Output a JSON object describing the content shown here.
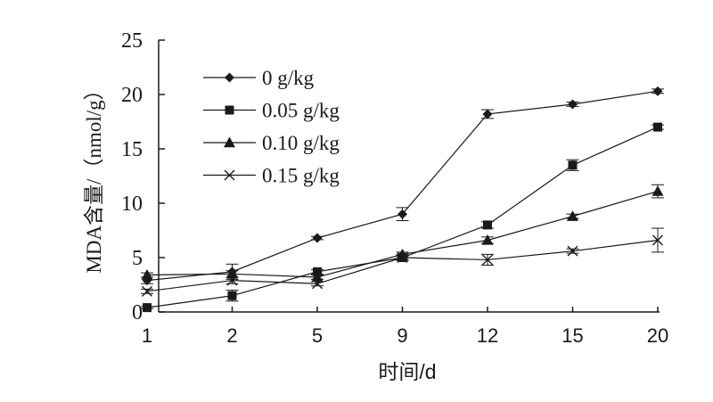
{
  "chart_data": {
    "type": "line",
    "xlabel": "时间/d",
    "ylabel": "MDA含量/（nmol/g）",
    "categories": [
      "1",
      "2",
      "5",
      "9",
      "12",
      "15",
      "20"
    ],
    "ylim": [
      0,
      25
    ],
    "yticks": [
      "0",
      "5",
      "10",
      "15",
      "20",
      "25"
    ],
    "grid": false,
    "legend_position": "top-left",
    "series": [
      {
        "name": "0 g/kg",
        "marker": "diamond",
        "values": [
          2.9,
          3.7,
          6.8,
          9.0,
          18.2,
          19.1,
          20.3
        ],
        "errors": [
          0.3,
          0.7,
          0.15,
          0.6,
          0.4,
          0.2,
          0.2
        ]
      },
      {
        "name": "0.05 g/kg",
        "marker": "square",
        "values": [
          0.4,
          1.5,
          3.7,
          5.0,
          8.0,
          13.5,
          17.0
        ],
        "errors": [
          0.1,
          0.5,
          0.2,
          0.2,
          0.3,
          0.5,
          0.2
        ]
      },
      {
        "name": "0.10 g/kg",
        "marker": "triangle",
        "values": [
          3.4,
          3.5,
          3.2,
          5.3,
          6.6,
          8.8,
          11.1
        ],
        "errors": [
          0.2,
          0.3,
          0.2,
          0.2,
          0.3,
          0.2,
          0.6
        ]
      },
      {
        "name": "0.15 g/kg",
        "marker": "x",
        "values": [
          1.9,
          2.9,
          2.6,
          5.0,
          4.8,
          5.6,
          6.6
        ],
        "errors": [
          0.2,
          0.3,
          0.2,
          0.3,
          0.5,
          0.2,
          1.1
        ]
      }
    ],
    "line_color": "#1a1a1a"
  }
}
